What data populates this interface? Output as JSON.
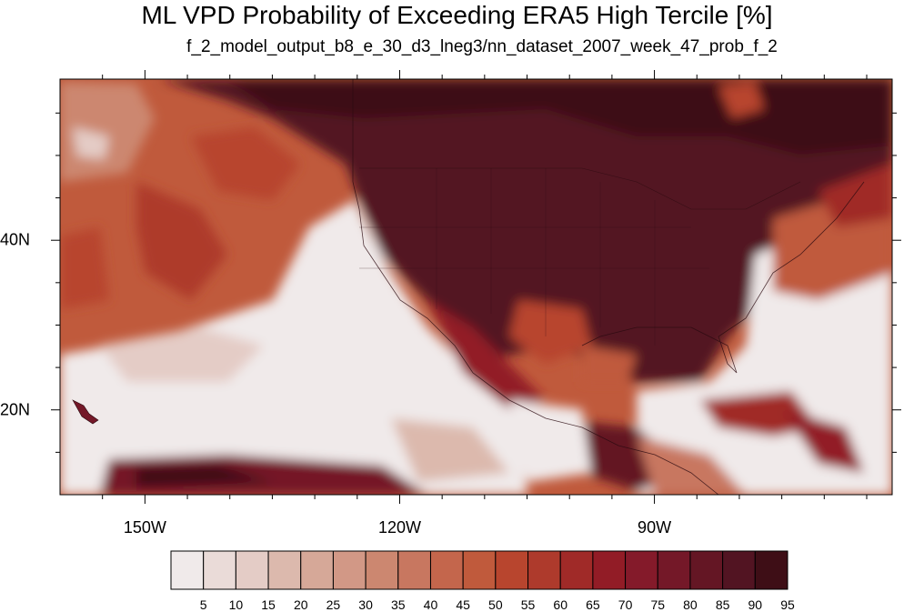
{
  "title": "ML VPD Probability of Exceeding ERA5 High Tercile [%]",
  "subtitle": "f_2_model_output_b8_e_30_d3_lneg3/nn_dataset_2007_week_47_prob_f_2",
  "map": {
    "lon_range": [
      -160,
      -62
    ],
    "lat_range": [
      10,
      59
    ],
    "lon_ticks": [
      {
        "value": -150,
        "label": "150W"
      },
      {
        "value": -120,
        "label": "120W"
      },
      {
        "value": -90,
        "label": "90W"
      }
    ],
    "lat_ticks": [
      {
        "value": 40,
        "label": "40N"
      },
      {
        "value": 20,
        "label": "20N"
      }
    ]
  },
  "colorbar": {
    "labels": [
      "5",
      "10",
      "15",
      "20",
      "25",
      "30",
      "35",
      "40",
      "45",
      "50",
      "55",
      "60",
      "65",
      "70",
      "75",
      "80",
      "85",
      "90",
      "95"
    ],
    "colors": [
      "#f0eaea",
      "#eadbd8",
      "#e4ccc6",
      "#dcb9ad",
      "#d6a898",
      "#d29886",
      "#cc8770",
      "#c87760",
      "#c4664c",
      "#c05a3c",
      "#b8452e",
      "#ae3a2c",
      "#a02a28",
      "#921c26",
      "#841a2a",
      "#741828",
      "#641624",
      "#521422",
      "#3e0e16"
    ]
  }
}
